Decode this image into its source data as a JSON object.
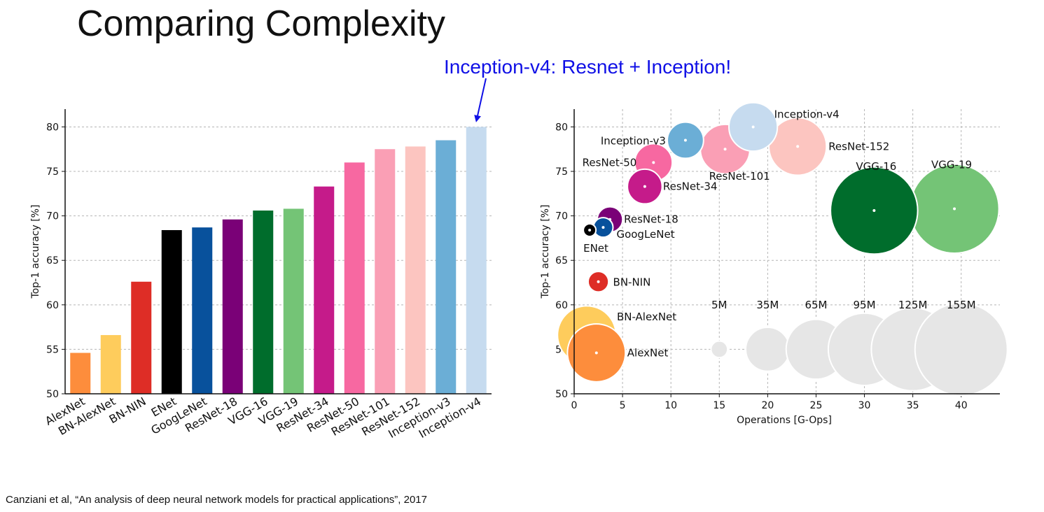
{
  "slide": {
    "title": "Comparing Complexity",
    "annotation": "Inception-v4: Resnet + Inception!",
    "citation": "Canziani et al, “An analysis of deep neural network models for practical applications”, 2017"
  },
  "chart_data": [
    {
      "type": "bar",
      "title": "",
      "xlabel": "",
      "ylabel": "Top-1 accuracy [%]",
      "ylim": [
        50,
        82
      ],
      "yticks": [
        50,
        55,
        60,
        65,
        70,
        75,
        80
      ],
      "grid": true,
      "categories": [
        "AlexNet",
        "BN-AlexNet",
        "BN-NIN",
        "ENet",
        "GoogLeNet",
        "ResNet-18",
        "VGG-16",
        "VGG-19",
        "ResNet-34",
        "ResNet-50",
        "ResNet-101",
        "ResNet-152",
        "Inception-v3",
        "Inception-v4"
      ],
      "values": [
        54.6,
        56.6,
        62.6,
        68.4,
        68.7,
        69.6,
        70.6,
        70.8,
        73.3,
        76.0,
        77.5,
        77.8,
        78.5,
        80.0
      ],
      "colors": [
        "#fd8d3c",
        "#fecc5c",
        "#de2d26",
        "#000000",
        "#08519c",
        "#7a0177",
        "#006d2c",
        "#74c476",
        "#c51b8a",
        "#f768a1",
        "#fa9fb5",
        "#fcc5c0",
        "#6baed6",
        "#c6dbef"
      ]
    },
    {
      "type": "scatter",
      "title": "",
      "xlabel": "Operations [G-Ops]",
      "ylabel": "Top-1 accuracy [%]",
      "xlim": [
        0,
        44
      ],
      "ylim": [
        50,
        82
      ],
      "xticks": [
        0,
        5,
        10,
        15,
        20,
        25,
        30,
        35,
        40
      ],
      "yticks": [
        50,
        55,
        60,
        65,
        70,
        75,
        80
      ],
      "grid": true,
      "points": [
        {
          "name": "AlexNet",
          "ops": 2.3,
          "acc": 54.6,
          "params_m": 61,
          "color": "#fd8d3c"
        },
        {
          "name": "BN-AlexNet",
          "ops": 1.3,
          "acc": 56.6,
          "params_m": 62,
          "color": "#fecc5c"
        },
        {
          "name": "BN-NIN",
          "ops": 2.5,
          "acc": 62.6,
          "params_m": 7.6,
          "color": "#de2d26"
        },
        {
          "name": "ENet",
          "ops": 1.6,
          "acc": 68.4,
          "params_m": 0.4,
          "color": "#000000"
        },
        {
          "name": "GoogLeNet",
          "ops": 3.0,
          "acc": 68.7,
          "params_m": 7,
          "color": "#08519c"
        },
        {
          "name": "ResNet-18",
          "ops": 3.7,
          "acc": 69.6,
          "params_m": 11.7,
          "color": "#7a0177"
        },
        {
          "name": "ResNet-34",
          "ops": 7.3,
          "acc": 73.3,
          "params_m": 21.8,
          "color": "#c51b8a"
        },
        {
          "name": "ResNet-50",
          "ops": 8.2,
          "acc": 76.0,
          "params_m": 25.6,
          "color": "#f768a1"
        },
        {
          "name": "Inception-v3",
          "ops": 11.5,
          "acc": 78.5,
          "params_m": 23.8,
          "color": "#6baed6"
        },
        {
          "name": "ResNet-101",
          "ops": 15.6,
          "acc": 77.5,
          "params_m": 44.5,
          "color": "#fa9fb5"
        },
        {
          "name": "Inception-v4",
          "ops": 18.5,
          "acc": 80.0,
          "params_m": 42.7,
          "color": "#c6dbef"
        },
        {
          "name": "ResNet-152",
          "ops": 23.1,
          "acc": 77.8,
          "params_m": 60.2,
          "color": "#fcc5c0"
        },
        {
          "name": "VGG-16",
          "ops": 31.0,
          "acc": 70.6,
          "params_m": 138,
          "color": "#006d2c"
        },
        {
          "name": "VGG-19",
          "ops": 39.3,
          "acc": 70.8,
          "params_m": 144,
          "color": "#74c476"
        }
      ],
      "size_legend": [
        {
          "label": "5M",
          "params_m": 5,
          "ops": 15,
          "acc": 55
        },
        {
          "label": "35M",
          "params_m": 35,
          "ops": 20,
          "acc": 55
        },
        {
          "label": "65M",
          "params_m": 65,
          "ops": 25,
          "acc": 55
        },
        {
          "label": "95M",
          "params_m": 95,
          "ops": 30,
          "acc": 55
        },
        {
          "label": "125M",
          "params_m": 125,
          "ops": 35,
          "acc": 55
        },
        {
          "label": "155M",
          "params_m": 155,
          "ops": 40,
          "acc": 55
        }
      ],
      "size_legend_color": "#e6e6e6"
    }
  ]
}
